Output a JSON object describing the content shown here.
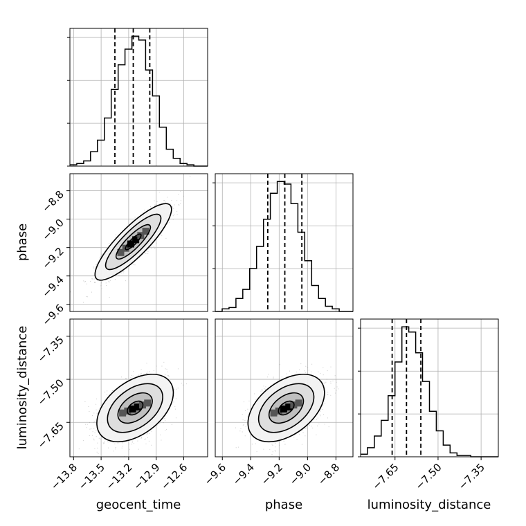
{
  "chart_data": {
    "type": "corner",
    "parameters": [
      "geocent_time",
      "phase",
      "luminosity_distance"
    ],
    "axis_labels": {
      "geocent_time": "geocent_time",
      "phase": "phase",
      "luminosity_distance": "luminosity_distance"
    },
    "grid": true,
    "ranges": {
      "geocent_time": [
        -13.84,
        -12.34
      ],
      "phase": [
        -9.65,
        -8.68
      ],
      "luminosity_distance": [
        -7.77,
        -7.29
      ]
    },
    "ticks": {
      "geocent_time": {
        "values": [
          -13.8,
          -13.5,
          -13.2,
          -12.9,
          -12.6
        ],
        "labels": [
          "−13.8",
          "−13.5",
          "−13.2",
          "−12.9",
          "−12.6"
        ]
      },
      "phase": {
        "values": [
          -9.6,
          -9.4,
          -9.2,
          -9.0,
          -8.8
        ],
        "labels": [
          "−9.6",
          "−9.4",
          "−9.2",
          "−9.0",
          "−8.8"
        ]
      },
      "luminosity_distance": {
        "values": [
          -7.65,
          -7.5,
          -7.35
        ],
        "labels": [
          "−7.65",
          "−7.50",
          "−7.35"
        ]
      }
    },
    "quantiles": {
      "geocent_time": [
        -13.35,
        -13.15,
        -12.97
      ],
      "phase": [
        -9.28,
        -9.16,
        -9.04
      ],
      "luminosity_distance": [
        -7.66,
        -7.61,
        -7.56
      ]
    },
    "histograms": {
      "geocent_time": {
        "edges": [
          -13.84,
          -13.765,
          -13.69,
          -13.615,
          -13.54,
          -13.465,
          -13.39,
          -13.315,
          -13.24,
          -13.165,
          -13.09,
          -13.015,
          -12.94,
          -12.865,
          -12.79,
          -12.715,
          -12.64,
          -12.565,
          -12.49,
          -12.415,
          -12.34
        ],
        "counts": [
          0.01,
          0.02,
          0.04,
          0.11,
          0.2,
          0.37,
          0.59,
          0.78,
          0.9,
          1.0,
          0.97,
          0.74,
          0.54,
          0.3,
          0.13,
          0.06,
          0.02,
          0.01,
          0.0,
          0.0
        ]
      },
      "phase": {
        "edges": [
          -9.65,
          -9.6015,
          -9.553,
          -9.5045,
          -9.456,
          -9.4075,
          -9.359,
          -9.3105,
          -9.262,
          -9.2135,
          -9.165,
          -9.1165,
          -9.068,
          -9.0195,
          -8.971,
          -8.9225,
          -8.874,
          -8.8255,
          -8.777,
          -8.7285,
          -8.68
        ],
        "counts": [
          0.0,
          0.02,
          0.03,
          0.1,
          0.17,
          0.33,
          0.5,
          0.71,
          0.91,
          1.0,
          0.98,
          0.83,
          0.61,
          0.39,
          0.2,
          0.1,
          0.04,
          0.02,
          0.0,
          0.0
        ]
      },
      "luminosity_distance": {
        "edges": [
          -7.77,
          -7.746,
          -7.722,
          -7.698,
          -7.674,
          -7.65,
          -7.626,
          -7.602,
          -7.578,
          -7.554,
          -7.53,
          -7.506,
          -7.482,
          -7.458,
          -7.434,
          -7.41,
          -7.386,
          -7.362,
          -7.338,
          -7.314,
          -7.29
        ],
        "counts": [
          0.02,
          0.07,
          0.16,
          0.28,
          0.47,
          0.73,
          1.0,
          0.96,
          0.8,
          0.58,
          0.35,
          0.2,
          0.09,
          0.03,
          0.01,
          0.01,
          0.0,
          0.0,
          0.0,
          0.0
        ]
      }
    },
    "pairs": [
      {
        "x": "geocent_time",
        "y": "phase",
        "mean": [
          -13.15,
          -9.16
        ],
        "std": [
          0.17,
          0.11
        ],
        "correlation": 0.85
      },
      {
        "x": "geocent_time",
        "y": "luminosity_distance",
        "mean": [
          -13.13,
          -7.6
        ],
        "std": [
          0.17,
          0.048
        ],
        "correlation": 0.45
      },
      {
        "x": "phase",
        "y": "luminosity_distance",
        "mean": [
          -9.15,
          -7.6
        ],
        "std": [
          0.11,
          0.048
        ],
        "correlation": 0.45
      }
    ]
  }
}
